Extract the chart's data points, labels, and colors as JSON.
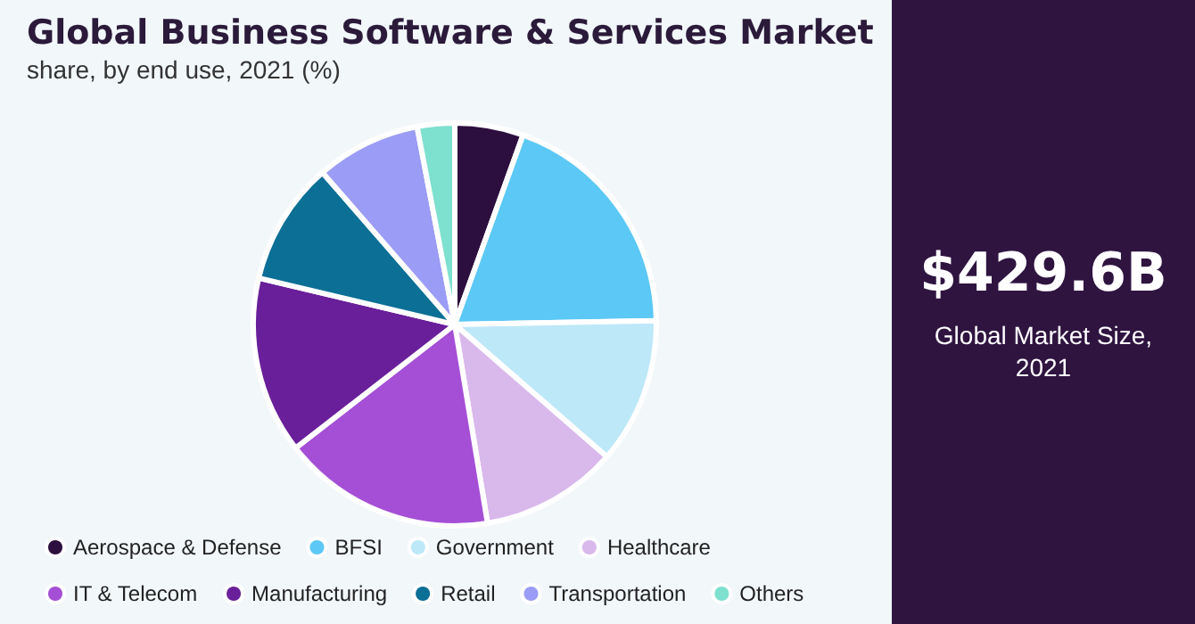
{
  "chart_data": {
    "type": "pie",
    "title": "Global Business Software & Services Market",
    "subtitle": "share, by end use, 2021 (%)",
    "categories": [
      "Aerospace & Defense",
      "BFSI",
      "Government",
      "Healthcare",
      "IT & Telecom",
      "Manufacturing",
      "Retail",
      "Transportation",
      "Others"
    ],
    "values": [
      5.5,
      19.2,
      11.7,
      11,
      17.1,
      14.2,
      9.9,
      8.4,
      3
    ],
    "colors": [
      "#2d0f3f",
      "#5bc8f5",
      "#bde8f8",
      "#d9b8ec",
      "#a54fd6",
      "#6a1f9a",
      "#0b6f96",
      "#9b9cf5",
      "#7ee0cf"
    ],
    "legend": "bottom",
    "annotations": [
      "$429.6B",
      "Global Market Size, 2021"
    ]
  }
}
